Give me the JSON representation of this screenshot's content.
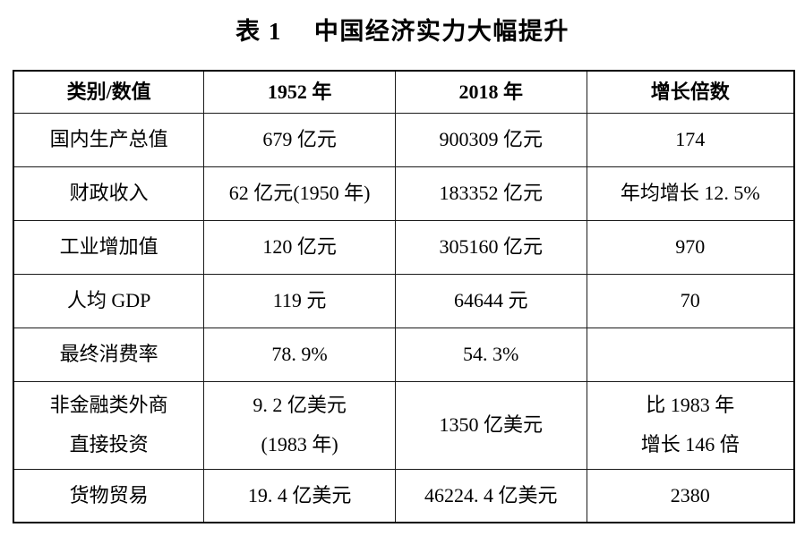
{
  "caption": {
    "label": "表 1",
    "title": "中国经济实力大幅提升"
  },
  "colors": {
    "text": "#000000",
    "border": "#000000",
    "background": "#ffffff"
  },
  "table": {
    "headers": [
      "类别/数值",
      "1952 年",
      "2018 年",
      "增长倍数"
    ],
    "rows": [
      [
        "国内生产总值",
        "679 亿元",
        "900309 亿元",
        "174"
      ],
      [
        "财政收入",
        "62 亿元(1950 年)",
        "183352 亿元",
        "年均增长 12. 5%"
      ],
      [
        "工业增加值",
        "120 亿元",
        "305160 亿元",
        "970"
      ],
      [
        "人均 GDP",
        "119 元",
        "64644 元",
        "70"
      ],
      [
        "最终消费率",
        "78. 9%",
        "54. 3%",
        ""
      ],
      [
        "非金融类外商\n直接投资",
        "9. 2 亿美元\n(1983 年)",
        "1350 亿美元",
        "比 1983 年\n增长 146 倍"
      ],
      [
        "货物贸易",
        "19. 4 亿美元",
        "46224. 4 亿美元",
        "2380"
      ]
    ]
  }
}
